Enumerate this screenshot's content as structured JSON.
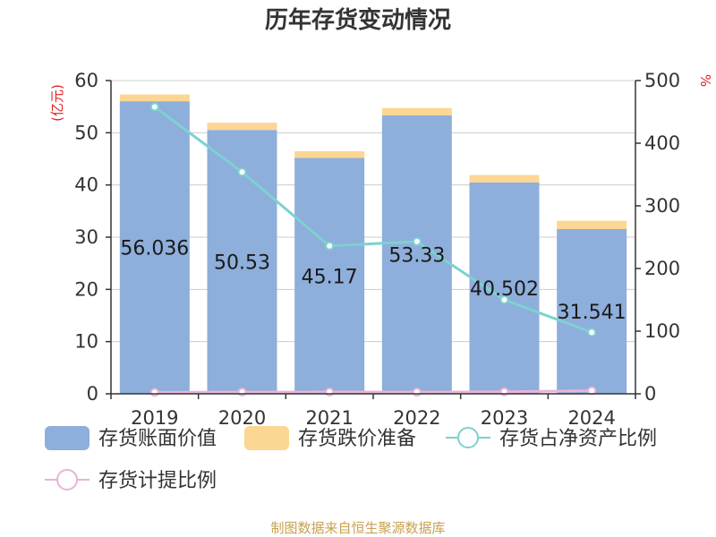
{
  "chart_data": {
    "type": "bar",
    "title": "历年存货变动情况",
    "categories": [
      "2019",
      "2020",
      "2021",
      "2022",
      "2023",
      "2024"
    ],
    "left_axis": {
      "unit": "(亿元)",
      "ylim": [
        0,
        60
      ],
      "ticks": [
        "0",
        "10",
        "20",
        "30",
        "40",
        "50",
        "60"
      ]
    },
    "right_axis": {
      "unit": "%",
      "ylim": [
        0,
        500
      ],
      "ticks": [
        "0",
        "100",
        "200",
        "300",
        "400",
        "500"
      ]
    },
    "series": [
      {
        "name": "存货账面价值",
        "type": "bar",
        "axis": "left",
        "color": "#8eaedb",
        "values": [
          56.036,
          50.53,
          45.17,
          53.33,
          40.502,
          31.541
        ],
        "labels": [
          "56.036",
          "50.53",
          "45.17",
          "53.33",
          "40.502",
          "31.541"
        ]
      },
      {
        "name": "存货跌价准备",
        "type": "bar-stacked",
        "axis": "left",
        "color": "#fcd693",
        "values": [
          1.3,
          1.4,
          1.3,
          1.4,
          1.4,
          1.6
        ]
      },
      {
        "name": "存货占净资产比例",
        "type": "line",
        "axis": "right",
        "color": "#7ed1d1",
        "values": [
          458,
          354,
          236,
          243,
          150,
          98
        ]
      },
      {
        "name": "存货计提比例",
        "type": "line",
        "axis": "right",
        "color": "#e9b3d8",
        "values": [
          2.3,
          2.7,
          2.8,
          2.6,
          3.3,
          4.8
        ]
      }
    ],
    "grid": true,
    "legend_position": "bottom",
    "source": "制图数据来自恒生聚源数据库"
  }
}
